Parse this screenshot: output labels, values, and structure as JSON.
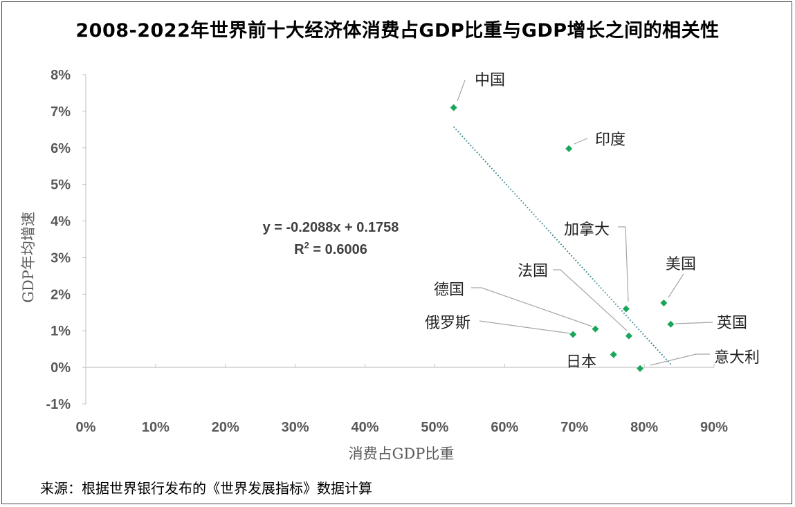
{
  "title": "2008-2022年世界前十大经济体消费占GDP比重与GDP增长之间的相关性",
  "source": "来源：根据世界银行发布的《世界发展指标》数据计算",
  "colors": {
    "marker": "#1aa65a",
    "trendline": "#2e7f8c",
    "axis": "#bfbfbf",
    "leader": "#a6a6a6"
  },
  "chart_data": {
    "type": "scatter",
    "title": "2008-2022年世界前十大经济体消费占GDP比重与GDP增长之间的相关性",
    "xlabel": "消费占GDP比重",
    "ylabel": "GDP年均增速",
    "xlim": [
      0,
      0.9
    ],
    "ylim": [
      -0.01,
      0.08
    ],
    "xticks": [
      0,
      0.1,
      0.2,
      0.3,
      0.4,
      0.5,
      0.6,
      0.7,
      0.8,
      0.9
    ],
    "xtick_labels": [
      "0%",
      "10%",
      "20%",
      "30%",
      "40%",
      "50%",
      "60%",
      "70%",
      "80%",
      "90%"
    ],
    "yticks": [
      -0.01,
      0,
      0.01,
      0.02,
      0.03,
      0.04,
      0.05,
      0.06,
      0.07,
      0.08
    ],
    "ytick_labels": [
      "-1%",
      "0%",
      "1%",
      "2%",
      "3%",
      "4%",
      "5%",
      "6%",
      "7%",
      "8%"
    ],
    "grid": false,
    "points": [
      {
        "label": "中国",
        "x": 0.527,
        "y": 0.071
      },
      {
        "label": "印度",
        "x": 0.692,
        "y": 0.0598
      },
      {
        "label": "加拿大",
        "x": 0.774,
        "y": 0.016
      },
      {
        "label": "美国",
        "x": 0.828,
        "y": 0.0176
      },
      {
        "label": "英国",
        "x": 0.838,
        "y": 0.0118
      },
      {
        "label": "法国",
        "x": 0.778,
        "y": 0.0086
      },
      {
        "label": "德国",
        "x": 0.73,
        "y": 0.0105
      },
      {
        "label": "俄罗斯",
        "x": 0.698,
        "y": 0.009
      },
      {
        "label": "日本",
        "x": 0.756,
        "y": 0.0035
      },
      {
        "label": "意大利",
        "x": 0.794,
        "y": -0.0003
      }
    ],
    "trendline": {
      "slope": -0.2088,
      "intercept": 0.1758,
      "x_range": [
        0.527,
        0.838
      ],
      "equation": "y = -0.2088x + 0.1758",
      "r2_prefix": "R",
      "r2_sup": "2",
      "r2_value": " = 0.6006"
    }
  }
}
